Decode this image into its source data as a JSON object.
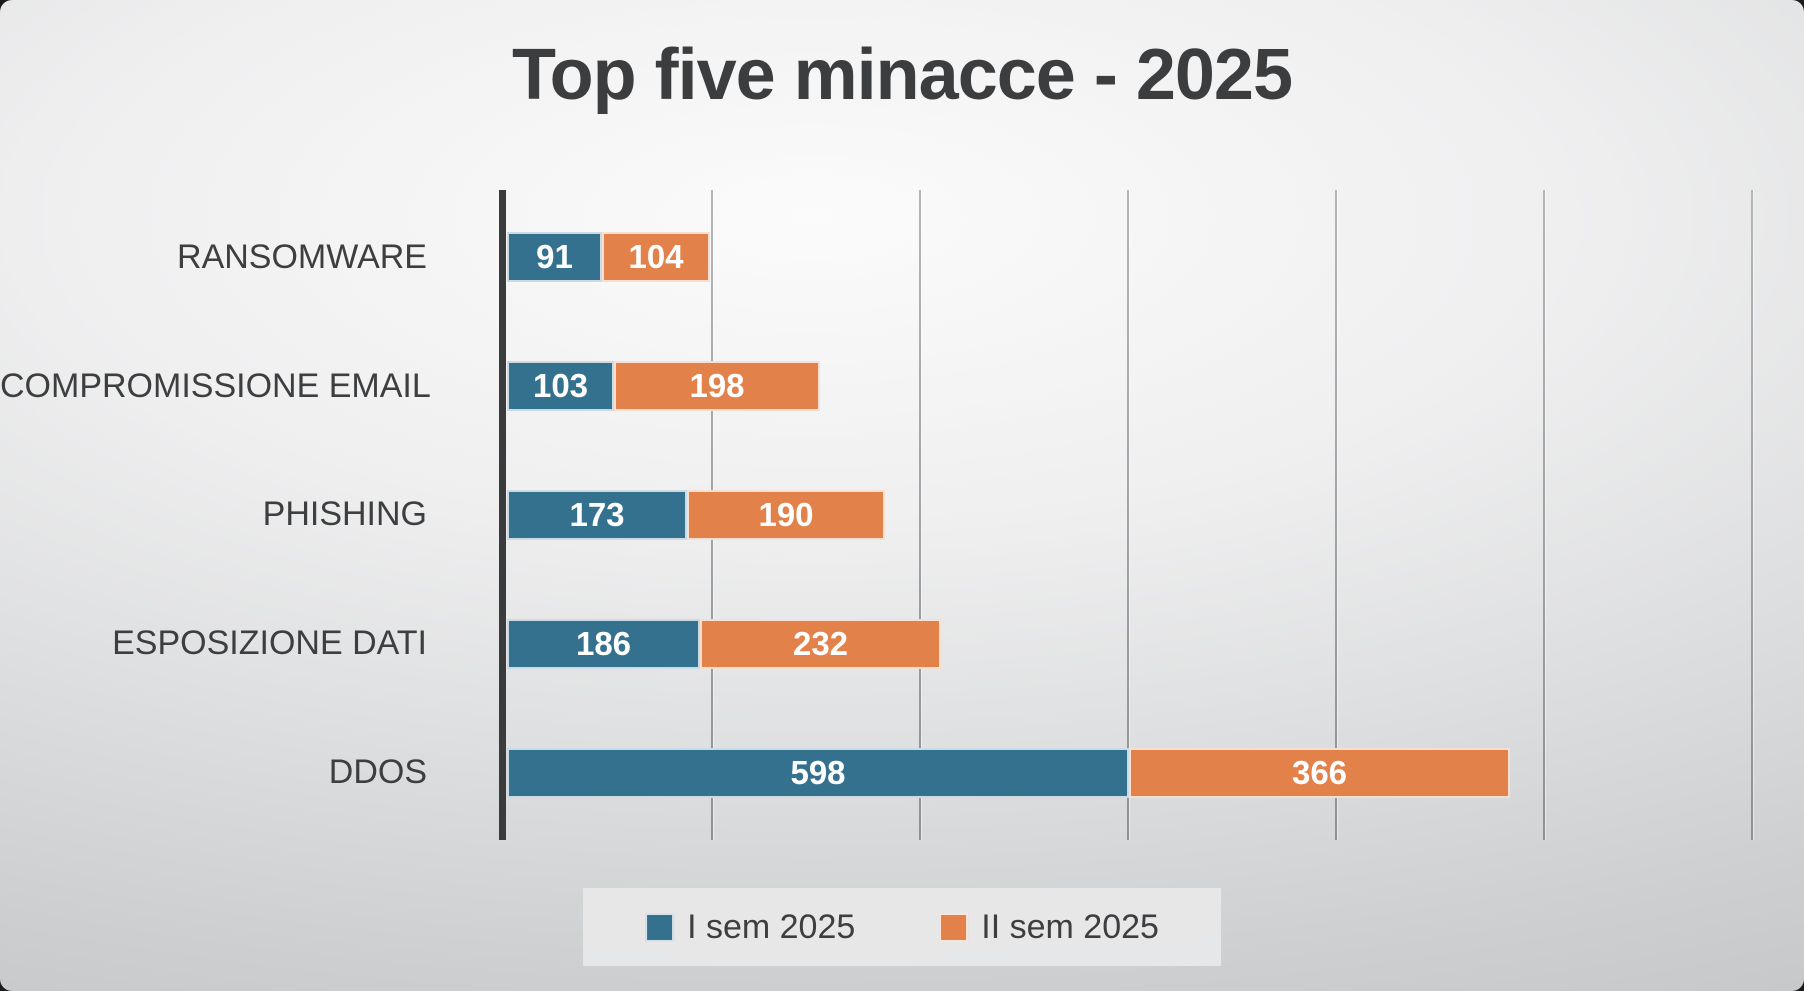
{
  "title": "Top five minacce - 2025",
  "colors": {
    "series1": "#34718e",
    "series2": "#e2814a",
    "axis": "#3a3b3c",
    "gridline": "#9b9ea0",
    "text": "#3c3e40",
    "bar_value_text": "#ffffff",
    "legend_background": "#e9e9ea"
  },
  "chart_data": {
    "type": "bar",
    "orientation": "horizontal",
    "stacked": true,
    "title": "Top five minacce - 2025",
    "categories": [
      "RANSOMWARE",
      "COMPROMISSIONE EMAIL",
      "PHISHING",
      "ESPOSIZIONE DATI",
      "DDOS"
    ],
    "series": [
      {
        "name": "I sem 2025",
        "color": "#34718e",
        "values": [
          91,
          103,
          173,
          186,
          598
        ]
      },
      {
        "name": "II sem 2025",
        "color": "#e2814a",
        "values": [
          104,
          198,
          190,
          232,
          366
        ]
      }
    ],
    "xlabel": "",
    "ylabel": "",
    "xlim": [
      0,
      1200
    ],
    "gridline_interval": 200,
    "grid": true,
    "axis_tick_labels_visible": false,
    "data_labels": true,
    "legend_position": "bottom"
  }
}
